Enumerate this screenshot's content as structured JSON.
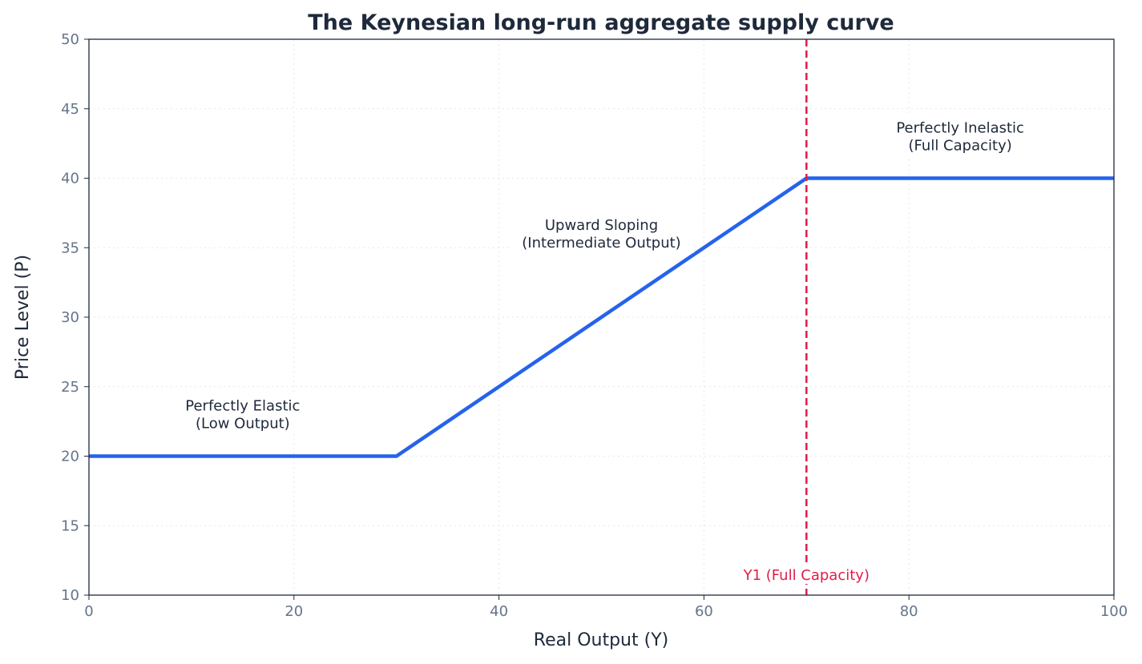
{
  "chart_data": {
    "type": "line",
    "title": "The Keynesian long-run aggregate supply curve",
    "xlabel": "Real Output (Y)",
    "ylabel": "Price Level (P)",
    "xlim": [
      0,
      100
    ],
    "ylim": [
      10,
      50
    ],
    "xticks": [
      0,
      20,
      40,
      60,
      80,
      100
    ],
    "yticks": [
      10,
      15,
      20,
      25,
      30,
      35,
      40,
      45,
      50
    ],
    "grid": true,
    "series": [
      {
        "x": [
          0,
          30,
          70,
          100
        ],
        "y": [
          20,
          20,
          40,
          40
        ],
        "color": "#2563eb"
      }
    ],
    "vline": {
      "x": 70,
      "color": "#e11d48",
      "style": "dashed",
      "label": "Y1 (Full Capacity)",
      "label_y": 11.5
    },
    "annotations": [
      {
        "lines": [
          "Perfectly Elastic",
          "(Low Output)"
        ],
        "x": 15,
        "y": 23
      },
      {
        "lines": [
          "Upward Sloping",
          "(Intermediate Output)"
        ],
        "x": 50,
        "y": 36
      },
      {
        "lines": [
          "Perfectly Inelastic",
          "(Full Capacity)"
        ],
        "x": 85,
        "y": 43
      }
    ],
    "colors": {
      "text": "#1e293b",
      "ticks": "#64748b",
      "grid": "#e5e7eb"
    }
  }
}
